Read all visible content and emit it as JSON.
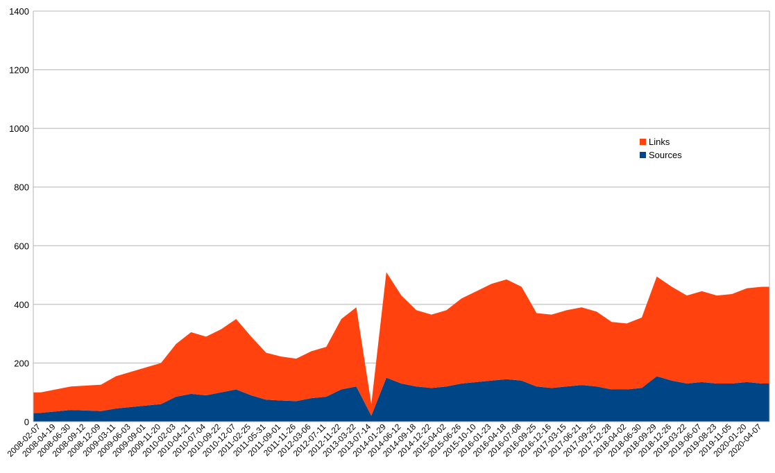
{
  "chart_data": {
    "type": "area",
    "stacked": true,
    "title": "",
    "xlabel": "",
    "ylabel": "",
    "ylim": [
      0,
      1400
    ],
    "yticks": [
      0,
      200,
      400,
      600,
      800,
      1000,
      1200,
      1400
    ],
    "grid": true,
    "legend_position": "right",
    "xtick_labels": [
      "2008-02-07",
      "2008-04-19",
      "2008-06-30",
      "2008-09-12",
      "2008-12-09",
      "2009-03-11",
      "2009-06-03",
      "2009-09-01",
      "2009-11-20",
      "2010-02-03",
      "2010-04-21",
      "2010-07-04",
      "2010-09-22",
      "2010-12-07",
      "2011-02-25",
      "2011-05-31",
      "2011-09-01",
      "2011-11-26",
      "2012-03-06",
      "2012-07-11",
      "2012-11-22",
      "2013-03-22",
      "2013-07-14",
      "2014-01-29",
      "2014-06-12",
      "2014-09-18",
      "2014-12-22",
      "2015-04-02",
      "2015-06-26",
      "2015-10-10",
      "2016-01-23",
      "2016-04-18",
      "2016-07-08",
      "2016-09-25",
      "2016-12-16",
      "2017-03-15",
      "2017-06-21",
      "2017-09-25",
      "2017-12-28",
      "2018-04-02",
      "2018-06-30",
      "2018-09-29",
      "2018-12-26",
      "2019-03-22",
      "2019-06-07",
      "2019-08-23",
      "2019-11-05",
      "2020-01-20",
      "2020-04-07"
    ],
    "series": [
      {
        "name": "Sources",
        "color": "#004586",
        "values": [
          30,
          35,
          40,
          38,
          36,
          45,
          50,
          55,
          60,
          85,
          95,
          90,
          100,
          110,
          90,
          75,
          72,
          70,
          80,
          85,
          110,
          120,
          20,
          150,
          130,
          120,
          115,
          120,
          130,
          135,
          140,
          145,
          140,
          120,
          115,
          120,
          125,
          120,
          110,
          110,
          115,
          155,
          140,
          130,
          135,
          130,
          130,
          135,
          130
        ]
      },
      {
        "name": "Links",
        "color": "#ff420e",
        "values": [
          70,
          75,
          80,
          85,
          90,
          110,
          120,
          130,
          140,
          180,
          210,
          200,
          215,
          240,
          200,
          160,
          150,
          145,
          160,
          170,
          240,
          270,
          40,
          360,
          300,
          260,
          250,
          260,
          290,
          310,
          330,
          340,
          320,
          250,
          250,
          260,
          265,
          255,
          230,
          225,
          240,
          340,
          320,
          300,
          310,
          300,
          305,
          320,
          330
        ]
      }
    ]
  }
}
